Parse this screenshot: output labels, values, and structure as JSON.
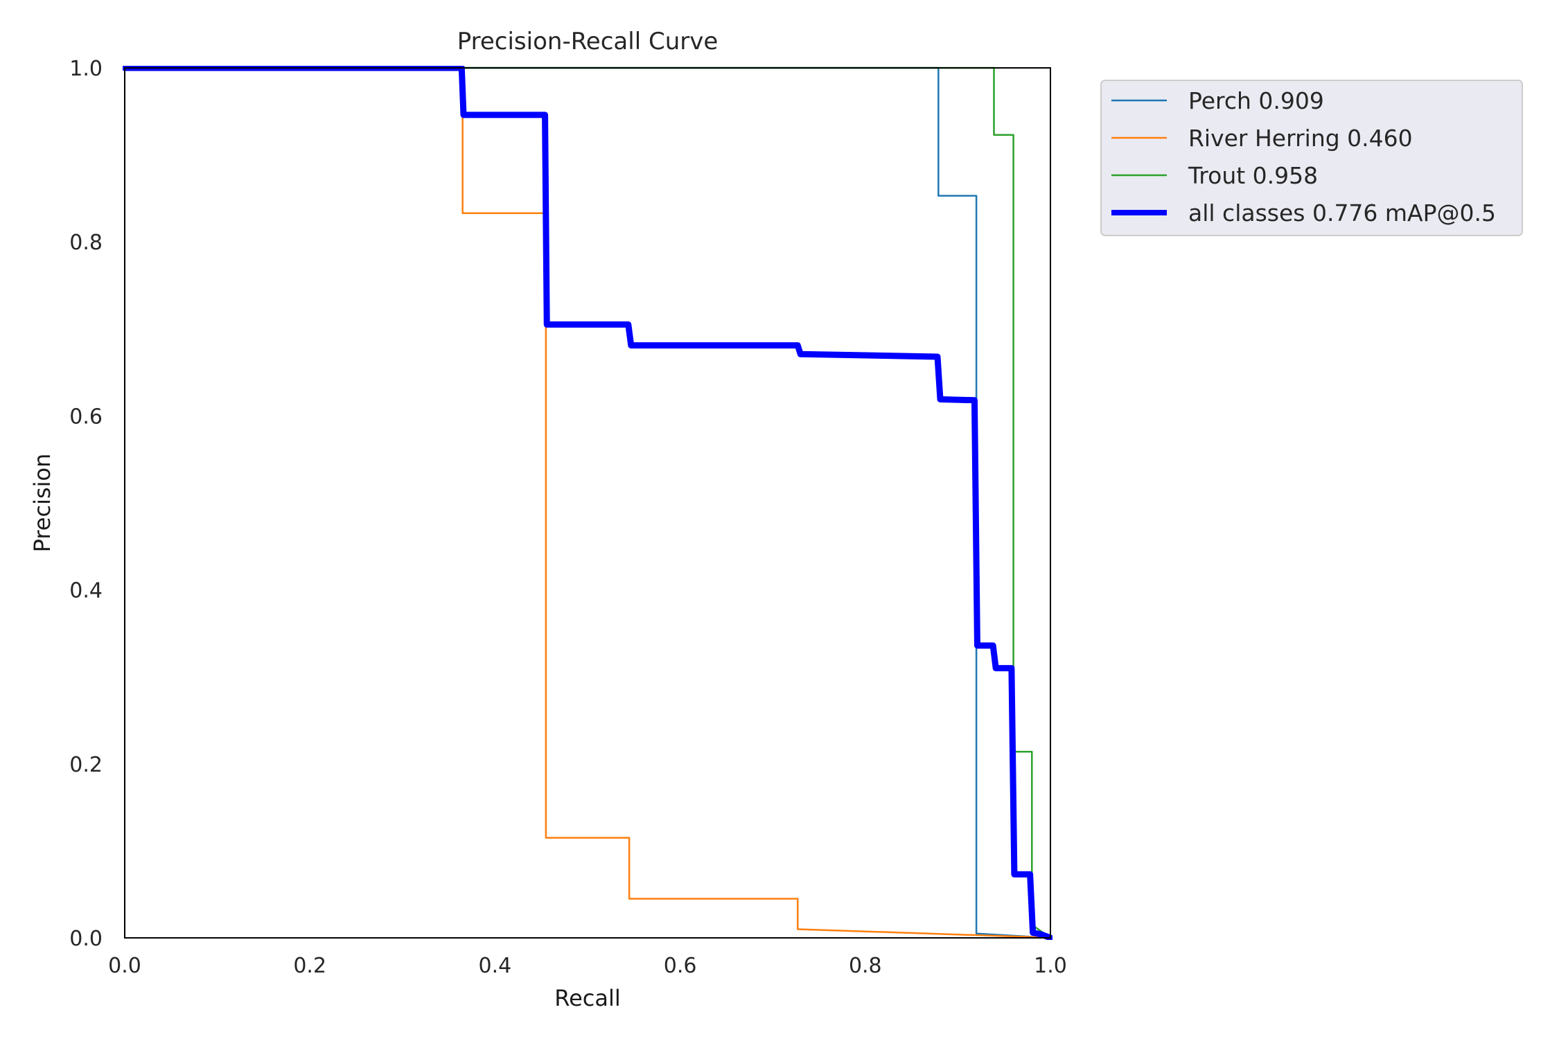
{
  "chart_data": {
    "type": "line",
    "title": "Precision-Recall Curve",
    "xlabel": "Recall",
    "ylabel": "Precision",
    "xlim": [
      0,
      1
    ],
    "ylim": [
      0,
      1
    ],
    "xticks": [
      "0.0",
      "0.2",
      "0.4",
      "0.6",
      "0.8",
      "1.0"
    ],
    "yticks": [
      "0.0",
      "0.2",
      "0.4",
      "0.6",
      "0.8",
      "1.0"
    ],
    "grid": false,
    "legend_position": "outside-upper-right",
    "series": [
      {
        "name": "Perch 0.909",
        "color": "#1f77b4",
        "points": [
          [
            0,
            1
          ],
          [
            0.879,
            1
          ],
          [
            0.879,
            0.853
          ],
          [
            0.92,
            0.853
          ],
          [
            0.92,
            0.005
          ],
          [
            1,
            0
          ]
        ]
      },
      {
        "name": "River Herring 0.460",
        "color": "#ff7f0e",
        "points": [
          [
            0,
            1
          ],
          [
            0.365,
            1
          ],
          [
            0.365,
            0.833
          ],
          [
            0.454,
            0.833
          ],
          [
            0.454,
            0.714
          ],
          [
            0.455,
            0.714
          ],
          [
            0.455,
            0.115
          ],
          [
            0.545,
            0.115
          ],
          [
            0.545,
            0.045
          ],
          [
            0.727,
            0.045
          ],
          [
            0.727,
            0.01
          ],
          [
            0.98,
            0.001
          ],
          [
            1,
            0
          ]
        ]
      },
      {
        "name": "Trout 0.958",
        "color": "#2ca02c",
        "points": [
          [
            0,
            1
          ],
          [
            0.939,
            1
          ],
          [
            0.939,
            0.923
          ],
          [
            0.96,
            0.923
          ],
          [
            0.96,
            0.214
          ],
          [
            0.98,
            0.214
          ],
          [
            0.98,
            0.015
          ],
          [
            1,
            0
          ]
        ]
      },
      {
        "name": "all classes 0.776 mAP@0.5",
        "color": "#0000ff",
        "bold": true,
        "points": [
          [
            0,
            1
          ],
          [
            0.364,
            1
          ],
          [
            0.366,
            0.946
          ],
          [
            0.454,
            0.946
          ],
          [
            0.456,
            0.705
          ],
          [
            0.544,
            0.705
          ],
          [
            0.547,
            0.681
          ],
          [
            0.727,
            0.681
          ],
          [
            0.73,
            0.671
          ],
          [
            0.878,
            0.668
          ],
          [
            0.881,
            0.619
          ],
          [
            0.918,
            0.618
          ],
          [
            0.921,
            0.336
          ],
          [
            0.938,
            0.336
          ],
          [
            0.941,
            0.31
          ],
          [
            0.958,
            0.31
          ],
          [
            0.961,
            0.073
          ],
          [
            0.978,
            0.073
          ],
          [
            0.981,
            0.006
          ],
          [
            0.99,
            0.004
          ],
          [
            1,
            0
          ]
        ]
      }
    ]
  }
}
